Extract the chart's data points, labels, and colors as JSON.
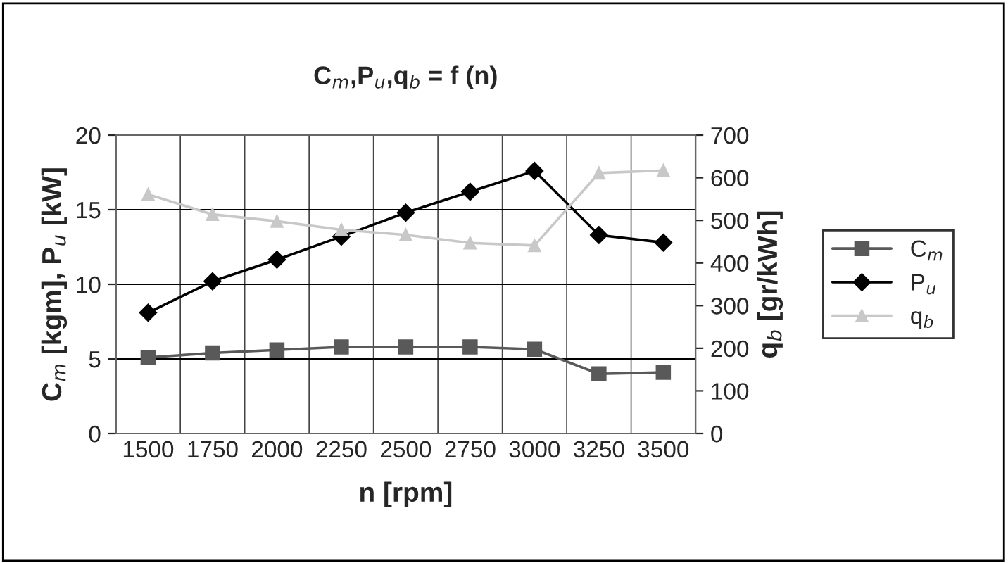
{
  "chart_data": {
    "type": "line",
    "title": "C$_{m}$,P$_{u}$,q$_{b}$ = f (n)",
    "xlabel": "n [rpm]",
    "ylabel": "C$_{m}$ [kgm], P$_{u}$ [kW]",
    "y2label": "q$_{b}$ [gr/kWh]",
    "categories": [
      "1500",
      "1750",
      "2000",
      "2250",
      "2500",
      "2750",
      "3000",
      "3250",
      "3500"
    ],
    "series": [
      {
        "name": "C$_{m}$",
        "color": "#595959",
        "marker": "square",
        "values": [
          5.1,
          5.4,
          5.6,
          5.8,
          5.8,
          5.8,
          5.65,
          4.0,
          4.1
        ]
      },
      {
        "name": "P$_{u}$",
        "color": "#000000",
        "marker": "diamond",
        "values": [
          8.1,
          10.2,
          11.65,
          13.2,
          14.8,
          16.2,
          17.6,
          13.3,
          12.8
        ]
      },
      {
        "name": "q$_{b}$",
        "color": "#c8c8c8",
        "marker": "triangle",
        "axis": "y2",
        "values": [
          561,
          514,
          498,
          478,
          466,
          447,
          441,
          611,
          617
        ]
      }
    ],
    "ylim": [
      0,
      20
    ],
    "yticks": [
      0,
      5,
      10,
      15,
      20
    ],
    "y2lim": [
      0,
      700
    ],
    "y2ticks": [
      0,
      100,
      200,
      300,
      400,
      500,
      600,
      700
    ],
    "grid": true,
    "legend": "right",
    "line_style": "solid"
  }
}
